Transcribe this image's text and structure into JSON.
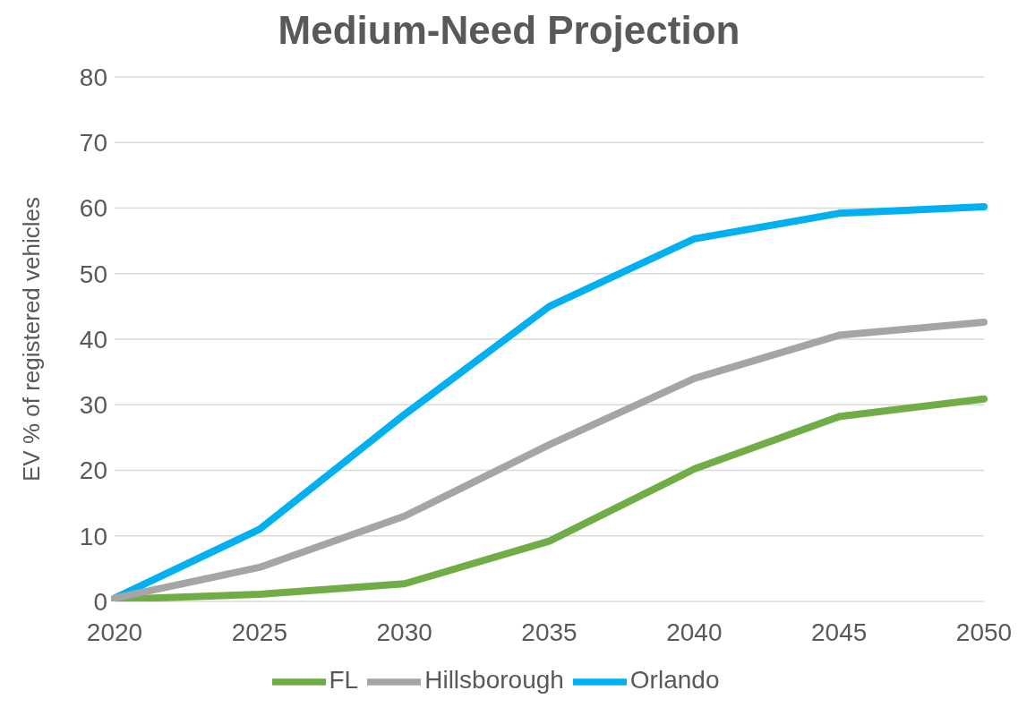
{
  "chart_data": {
    "type": "line",
    "title": "Medium-Need Projection",
    "ylabel": "EV % of registered vehicles",
    "categories": [
      "2020",
      "2025",
      "2030",
      "2035",
      "2040",
      "2045",
      "2050"
    ],
    "series": [
      {
        "name": "FL",
        "color": "#70ad47",
        "values": [
          0.3,
          1.1,
          2.7,
          9.2,
          20.2,
          28.2,
          30.9
        ]
      },
      {
        "name": "Orlando",
        "color": "#00b0f0",
        "values": [
          0.5,
          11,
          28.5,
          45,
          55.3,
          59.2,
          60.2
        ]
      },
      {
        "name": "Hillsborough",
        "color": "#a5a5a5",
        "values": [
          0.5,
          5.2,
          13,
          23.9,
          34,
          40.6,
          42.6
        ]
      }
    ],
    "ylim": [
      0,
      80
    ],
    "yticks": [
      0,
      10,
      20,
      30,
      40,
      50,
      60,
      70,
      80
    ],
    "grid": "y",
    "legend": "bottom"
  }
}
